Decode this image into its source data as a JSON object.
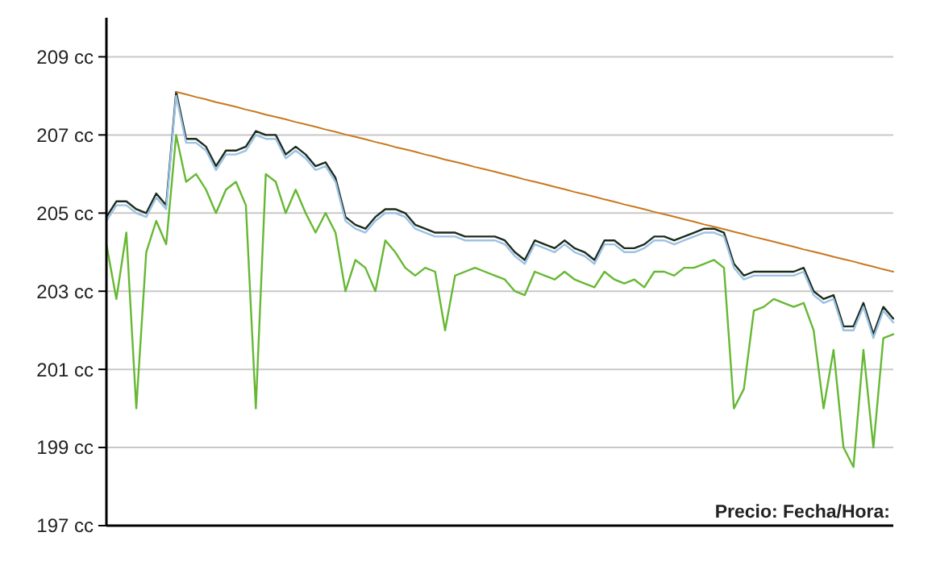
{
  "chart_data": {
    "type": "line",
    "ylim": [
      197,
      210
    ],
    "yticks": [
      {
        "value": 197,
        "label": "197 cc"
      },
      {
        "value": 199,
        "label": "199 cc"
      },
      {
        "value": 201,
        "label": "201 cc"
      },
      {
        "value": 203,
        "label": "203 cc"
      },
      {
        "value": 205,
        "label": "205 cc"
      },
      {
        "value": 207,
        "label": "207 cc"
      },
      {
        "value": 209,
        "label": "209 cc"
      }
    ],
    "grid": "y",
    "annotations": [
      "Precio: Fecha/Hora:"
    ],
    "categories": [
      null,
      null,
      null,
      null,
      null,
      null,
      null,
      null,
      null,
      null,
      null,
      null,
      null,
      null,
      null,
      null,
      null,
      null,
      null,
      null,
      null,
      null,
      null,
      null,
      null,
      null,
      null,
      null,
      null,
      null,
      null,
      null,
      null,
      null,
      null,
      null,
      null,
      null,
      null,
      null,
      null,
      null,
      null,
      null,
      null,
      null,
      null,
      null,
      null,
      null,
      null,
      null,
      null,
      null,
      null,
      null,
      null,
      null,
      null,
      null,
      null,
      null,
      null,
      null,
      null,
      null,
      null,
      null,
      null,
      null,
      null,
      null,
      null,
      null,
      null,
      null,
      null,
      null,
      null,
      null
    ],
    "series": [
      {
        "color": "#66b833",
        "values": [
          204.2,
          202.8,
          204.5,
          200.0,
          204.0,
          204.8,
          204.2,
          207.0,
          205.8,
          206.0,
          205.6,
          205.0,
          205.6,
          205.8,
          205.2,
          200.0,
          206.0,
          205.8,
          205.0,
          205.6,
          205.0,
          204.5,
          205.0,
          204.5,
          203.0,
          203.8,
          203.6,
          203.0,
          204.3,
          204.0,
          203.6,
          203.4,
          203.6,
          203.5,
          202.0,
          203.4,
          203.5,
          203.6,
          203.5,
          203.4,
          203.3,
          203.0,
          202.9,
          203.5,
          203.4,
          203.3,
          203.5,
          203.3,
          203.2,
          203.1,
          203.5,
          203.3,
          203.2,
          203.3,
          203.1,
          203.5,
          203.5,
          203.4,
          203.6,
          203.6,
          203.7,
          203.8,
          203.6,
          200.0,
          200.5,
          202.5,
          202.6,
          202.8,
          202.7,
          202.6,
          202.7,
          202.0,
          200.0,
          201.5,
          199.0,
          198.5,
          201.5,
          199.0,
          201.8,
          201.9
        ]
      },
      {
        "color": "#1c2b1c",
        "values": [
          204.9,
          205.3,
          205.3,
          205.1,
          205.0,
          205.5,
          205.2,
          208.1,
          206.9,
          206.9,
          206.7,
          206.2,
          206.6,
          206.6,
          206.7,
          207.1,
          207.0,
          207.0,
          206.5,
          206.7,
          206.5,
          206.2,
          206.3,
          205.9,
          204.9,
          204.7,
          204.6,
          204.9,
          205.1,
          205.1,
          205.0,
          204.7,
          204.6,
          204.5,
          204.5,
          204.5,
          204.4,
          204.4,
          204.4,
          204.4,
          204.3,
          204.0,
          203.8,
          204.3,
          204.2,
          204.1,
          204.3,
          204.1,
          204.0,
          203.8,
          204.3,
          204.3,
          204.1,
          204.1,
          204.2,
          204.4,
          204.4,
          204.3,
          204.4,
          204.5,
          204.6,
          204.6,
          204.5,
          203.7,
          203.4,
          203.5,
          203.5,
          203.5,
          203.5,
          203.5,
          203.6,
          203.0,
          202.8,
          202.9,
          202.1,
          202.1,
          202.7,
          201.9,
          202.6,
          202.3
        ]
      },
      {
        "color": "#9cc2e4",
        "values": [
          204.8,
          205.2,
          205.2,
          205.0,
          204.9,
          205.4,
          205.1,
          208.0,
          206.8,
          206.8,
          206.6,
          206.1,
          206.5,
          206.5,
          206.6,
          207.0,
          206.9,
          206.9,
          206.4,
          206.6,
          206.4,
          206.1,
          206.2,
          205.8,
          204.8,
          204.6,
          204.5,
          204.8,
          205.0,
          205.0,
          204.9,
          204.6,
          204.5,
          204.4,
          204.4,
          204.4,
          204.3,
          204.3,
          204.3,
          204.3,
          204.2,
          203.9,
          203.7,
          204.2,
          204.1,
          204.0,
          204.2,
          204.0,
          203.9,
          203.7,
          204.2,
          204.2,
          204.0,
          204.0,
          204.1,
          204.3,
          204.3,
          204.2,
          204.3,
          204.4,
          204.5,
          204.5,
          204.4,
          203.6,
          203.3,
          203.4,
          203.4,
          203.4,
          203.4,
          203.4,
          203.5,
          202.9,
          202.7,
          202.8,
          202.0,
          202.0,
          202.6,
          201.8,
          202.5,
          202.2
        ]
      },
      {
        "color": "#c8781e",
        "values": [
          null,
          null,
          null,
          null,
          null,
          null,
          null,
          208.1,
          208.04,
          207.97,
          207.91,
          207.84,
          207.78,
          207.72,
          207.65,
          207.59,
          207.52,
          207.46,
          207.4,
          207.33,
          207.27,
          207.21,
          207.14,
          207.08,
          207.01,
          206.95,
          206.89,
          206.82,
          206.76,
          206.69,
          206.63,
          206.57,
          206.5,
          206.44,
          206.37,
          206.31,
          206.25,
          206.18,
          206.12,
          206.06,
          205.99,
          205.93,
          205.86,
          205.8,
          205.74,
          205.67,
          205.61,
          205.54,
          205.48,
          205.42,
          205.35,
          205.29,
          205.22,
          205.16,
          205.1,
          205.03,
          204.97,
          204.91,
          204.84,
          204.78,
          204.71,
          204.65,
          204.59,
          204.52,
          204.46,
          204.39,
          204.33,
          204.27,
          204.2,
          204.14,
          204.07,
          204.01,
          203.95,
          203.88,
          203.82,
          203.76,
          203.69,
          203.63,
          203.56,
          203.5
        ]
      }
    ]
  }
}
